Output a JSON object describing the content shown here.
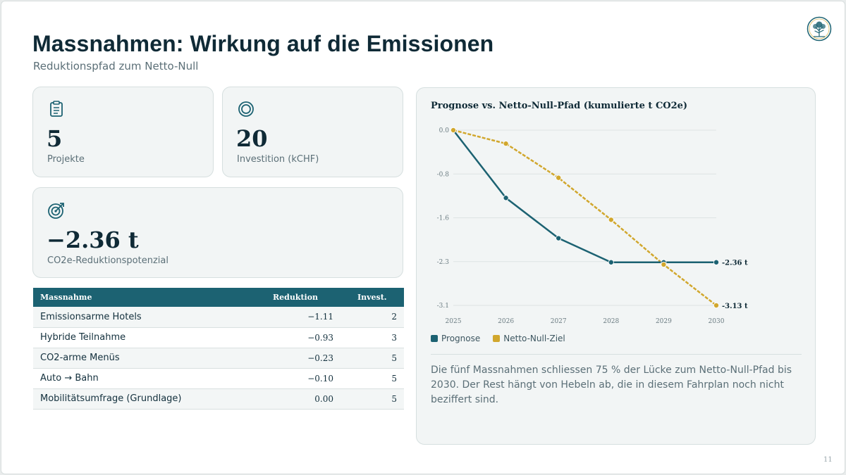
{
  "header": {
    "title": "Massnahmen: Wirkung auf die Emissionen",
    "subtitle": "Reduktionspfad zum Netto-Null"
  },
  "kpis": [
    {
      "icon": "clipboard-icon",
      "value": "5",
      "label": "Projekte"
    },
    {
      "icon": "ring-icon",
      "value": "20",
      "label": "Investition (kCHF)"
    },
    {
      "icon": "target-icon",
      "value": "−2.36 t",
      "label": "CO2e-Reduktionspotenzial"
    }
  ],
  "table": {
    "headers": [
      "Massnahme",
      "Reduktion",
      "Invest."
    ],
    "rows": [
      [
        "Emissionsarme Hotels",
        "−1.11",
        "2"
      ],
      [
        "Hybride Teilnahme",
        "−0.93",
        "3"
      ],
      [
        "CO2-arme Menüs",
        "−0.23",
        "5"
      ],
      [
        "Auto → Bahn",
        "−0.10",
        "5"
      ],
      [
        "Mobilitätsumfrage (Grundlage)",
        "0.00",
        "5"
      ]
    ]
  },
  "chart_data": {
    "type": "line",
    "title": "Prognose vs. Netto-Null-Pfad (kumulierte t CO2e)",
    "x": [
      2025,
      2026,
      2027,
      2028,
      2029,
      2030
    ],
    "y_ticks": [
      "0.0",
      "-0.8",
      "-1.6",
      "-2.3",
      "-3.1"
    ],
    "ylim": [
      -3.13,
      0
    ],
    "grid": true,
    "legend": "bottom-left",
    "series": [
      {
        "name": "Prognose",
        "color": "#1c6272",
        "dash": false,
        "values": [
          0,
          -1.21,
          -1.93,
          -2.36,
          -2.36,
          -2.36
        ],
        "end_label": "-2.36 t"
      },
      {
        "name": "Netto-Null-Ziel",
        "color": "#d1a72d",
        "dash": true,
        "values": [
          0,
          -0.24,
          -0.85,
          -1.6,
          -2.4,
          -3.13
        ],
        "end_label": "-3.13 t"
      }
    ]
  },
  "chart_note": "Die fünf Massnahmen schliessen 75 % der Lücke zum Netto-Null-Pfad bis 2030. Der Rest hängt von Hebeln ab, die in diesem Fahrplan noch nicht beziffert sind.",
  "page_number": "11",
  "colors": {
    "primary": "#1c6272",
    "accent": "#d1a72d",
    "text": "#0f2a36"
  }
}
